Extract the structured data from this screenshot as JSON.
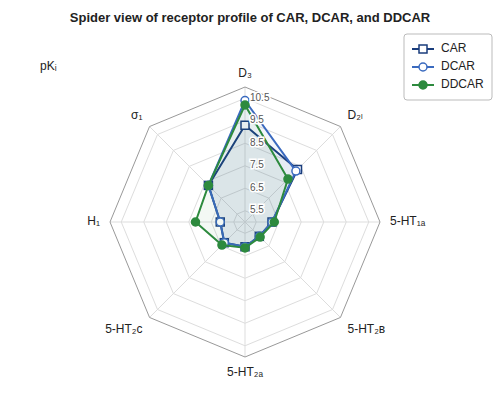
{
  "chart_data": {
    "type": "radar",
    "title": "Spider view of receptor profile of CAR, DCAR, and DDCAR",
    "ylabel": "pKᵢ",
    "categories": [
      "D₃",
      "D₂ₗ",
      "5-HT₁ₐ",
      "5-HT₂ʙ",
      "5-HT₂ₐ",
      "5-HT₂ᴄ",
      "H₁",
      "σ₁"
    ],
    "ylim": [
      5,
      11
    ],
    "yticks": [
      5.5,
      6.5,
      7.5,
      8.5,
      9.5,
      10.5
    ],
    "grid": true,
    "legend": "upper right",
    "series": [
      {
        "name": "CAR",
        "color": "#1a3d7c",
        "marker": "open-square",
        "values": [
          9.3,
          8.3,
          6.2,
          5.9,
          6.1,
          6.3,
          6.1,
          7.3
        ]
      },
      {
        "name": "DCAR",
        "color": "#3a6abf",
        "marker": "open-circle",
        "values": [
          10.4,
          8.2,
          6.2,
          5.9,
          6.1,
          6.3,
          6.1,
          7.3
        ]
      },
      {
        "name": "DDCAR",
        "color": "#2d8a3e",
        "marker": "circle",
        "values": [
          10.2,
          7.7,
          6.3,
          5.95,
          6.15,
          6.45,
          7.2,
          7.3
        ]
      }
    ]
  }
}
